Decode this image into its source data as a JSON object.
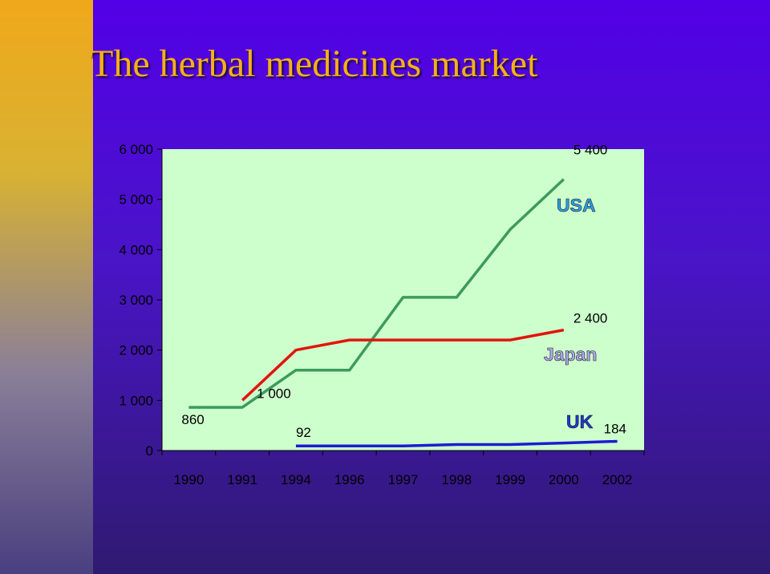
{
  "title": "The herbal medicines market",
  "chart_data": {
    "type": "line",
    "categories": [
      "1990",
      "1991",
      "1994",
      "1996",
      "1997",
      "1998",
      "1999",
      "2000",
      "2002"
    ],
    "ylim": [
      0,
      6000
    ],
    "y_ticks": [
      "0",
      "1 000",
      "2 000",
      "3 000",
      "4 000",
      "5 000",
      "6 000"
    ],
    "grid": false,
    "series": [
      {
        "name": "USA",
        "color": "#3d9a5c",
        "values": [
          860,
          860,
          1600,
          1600,
          3050,
          3050,
          4400,
          5400,
          null
        ]
      },
      {
        "name": "Japan",
        "color": "#e0160c",
        "values": [
          null,
          1000,
          2000,
          2200,
          2200,
          2200,
          2200,
          2400,
          null
        ]
      },
      {
        "name": "UK",
        "color": "#1c1cd0",
        "values": [
          null,
          null,
          92,
          92,
          92,
          120,
          120,
          150,
          184
        ]
      }
    ],
    "data_labels": [
      {
        "text": "5 400",
        "series": "USA",
        "category": "2000"
      },
      {
        "text": "860",
        "series": "USA",
        "category": "1990"
      },
      {
        "text": "2 400",
        "series": "Japan",
        "category": "2000"
      },
      {
        "text": "1 000",
        "series": "Japan",
        "category": "1991"
      },
      {
        "text": "92",
        "series": "UK",
        "category": "1994"
      },
      {
        "text": "184",
        "series": "UK",
        "category": "2002"
      }
    ],
    "series_labels": [
      "USA",
      "Japan",
      "UK"
    ]
  }
}
